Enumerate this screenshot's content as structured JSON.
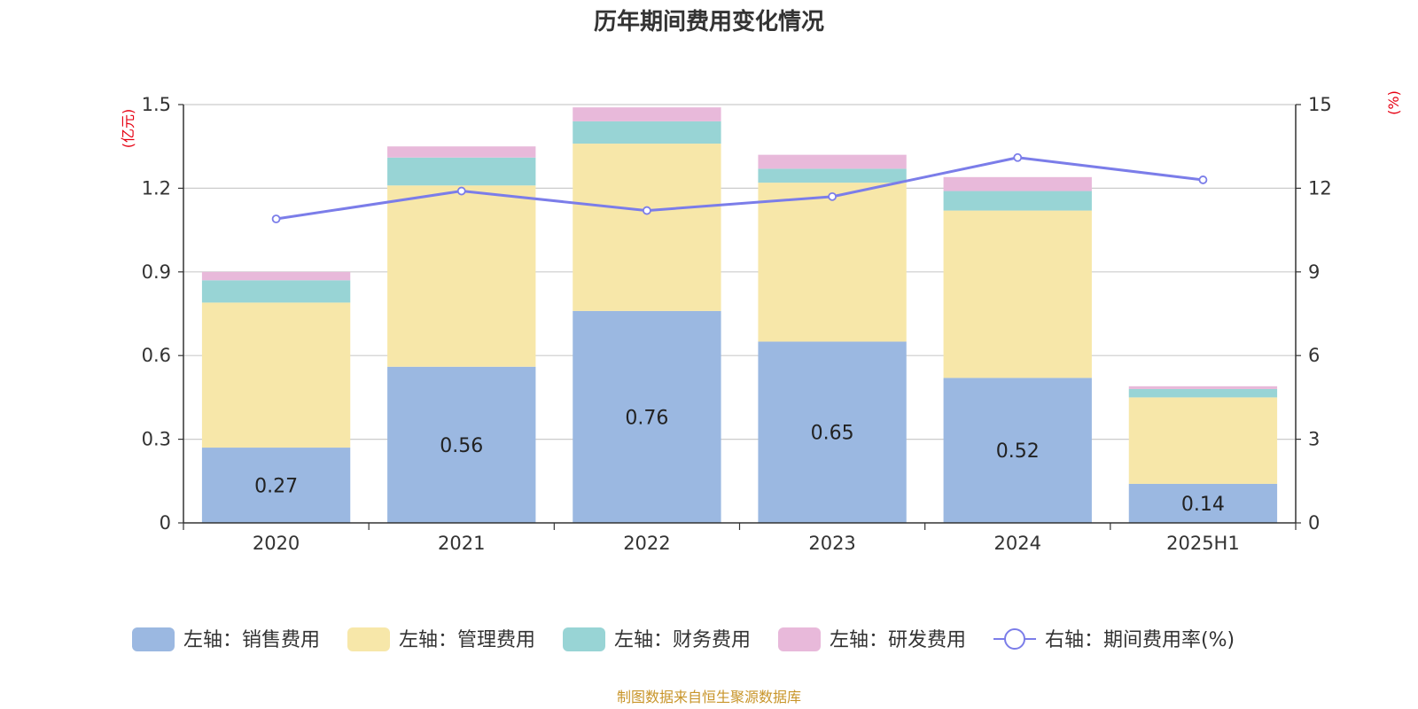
{
  "chart_data": {
    "type": "bar",
    "title": "历年期间费用变化情况",
    "categories": [
      "2020",
      "2021",
      "2022",
      "2023",
      "2024",
      "2025H1"
    ],
    "left_axis": {
      "unit": "(亿元)",
      "min": 0,
      "max": 1.5,
      "ticks": [
        "0",
        "0.3",
        "0.6",
        "0.9",
        "1.2",
        "1.5"
      ]
    },
    "right_axis": {
      "unit": "(%)",
      "min": 0,
      "max": 15,
      "ticks": [
        "0",
        "3",
        "6",
        "9",
        "12",
        "15"
      ]
    },
    "grid": true,
    "legend_position": "bottom",
    "series": [
      {
        "name": "左轴：销售费用",
        "type": "bar",
        "stack": true,
        "color": "#9bb8e1",
        "values": [
          0.27,
          0.56,
          0.76,
          0.65,
          0.52,
          0.14
        ],
        "labels": [
          "0.27",
          "0.56",
          "0.76",
          "0.65",
          "0.52",
          "0.14"
        ]
      },
      {
        "name": "左轴：管理费用",
        "type": "bar",
        "stack": true,
        "color": "#f7e7a9",
        "values": [
          0.52,
          0.65,
          0.6,
          0.57,
          0.6,
          0.31
        ]
      },
      {
        "name": "左轴：财务费用",
        "type": "bar",
        "stack": true,
        "color": "#98d4d5",
        "values": [
          0.08,
          0.1,
          0.08,
          0.05,
          0.07,
          0.03
        ]
      },
      {
        "name": "左轴：研发费用",
        "type": "bar",
        "stack": true,
        "color": "#e8b9da",
        "values": [
          0.03,
          0.04,
          0.05,
          0.05,
          0.05,
          0.01
        ]
      },
      {
        "name": "右轴：期间费用率(%)",
        "type": "line",
        "axis": "right",
        "color": "#7b7de9",
        "values": [
          10.9,
          11.9,
          11.2,
          11.7,
          13.1,
          12.3
        ]
      }
    ]
  },
  "footer": {
    "source": "制图数据来自恒生聚源数据库"
  }
}
